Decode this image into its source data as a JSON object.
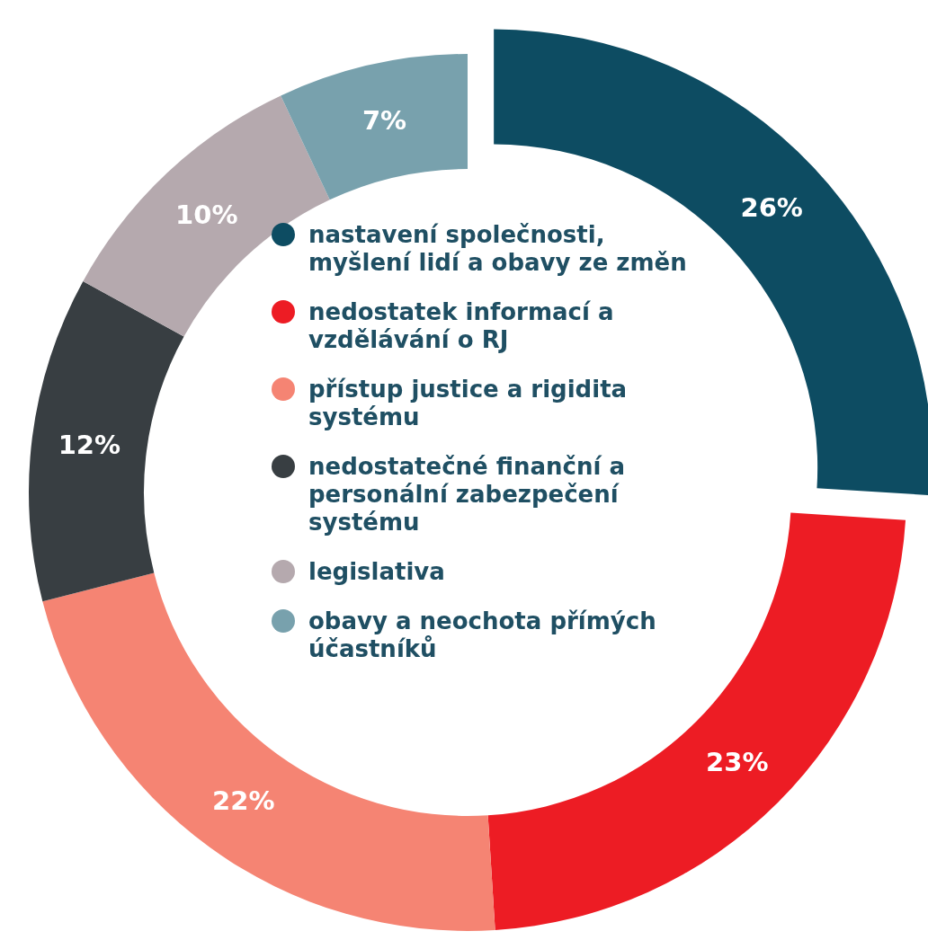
{
  "chart_data": {
    "type": "donut",
    "categories": [
      "nastavení společnosti, myšlení lidí a obavy ze změn",
      "nedostatek informací a vzdělávání o RJ",
      "přístup justice a rigidita systému",
      "nedostatečné finanční a personální zabezpečení systému",
      "legislativa",
      "obavy a neochota přímých účastníků"
    ],
    "values": [
      26,
      23,
      22,
      12,
      10,
      7
    ],
    "colors": [
      "#0d4c62",
      "#ed1c24",
      "#f58473",
      "#383e42",
      "#b5a9ae",
      "#78a1ad"
    ],
    "value_labels": [
      "26%",
      "23%",
      "22%",
      "12%",
      "10%",
      "7%"
    ],
    "legend": "center"
  }
}
